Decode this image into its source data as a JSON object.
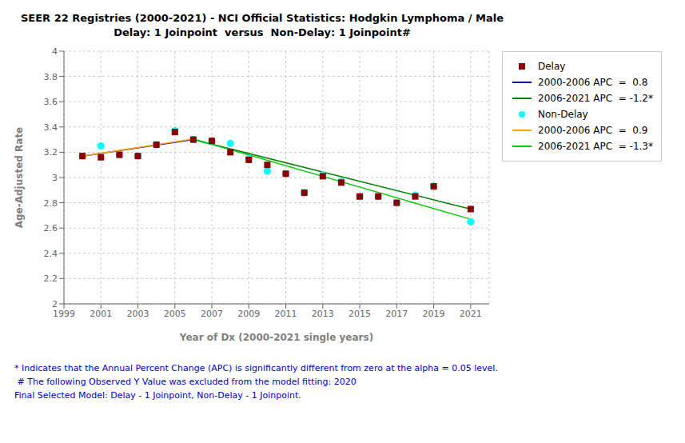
{
  "chart_data": {
    "type": "scatter",
    "title": "SEER 22 Registries (2000-2021) - NCI Official Statistics: Hodgkin Lymphoma / Male",
    "subtitle": "Delay: 1 Joinpoint  versus  Non-Delay: 1 Joinpoint#",
    "x_label": "Year of Dx (2000-2021 single years)",
    "y_label": "Age-Adjusted Rate",
    "xlim": [
      1999,
      2022
    ],
    "ylim": [
      2,
      4
    ],
    "xticks": [
      1999,
      2001,
      2003,
      2005,
      2007,
      2009,
      2011,
      2013,
      2015,
      2017,
      2019,
      2021
    ],
    "yticks": [
      2,
      2.2,
      2.4,
      2.6,
      2.8,
      3,
      3.2,
      3.4,
      3.6,
      3.8,
      4
    ],
    "grid": true,
    "legend": "right",
    "series": [
      {
        "name": "Delay",
        "type": "scatter",
        "marker": "square",
        "color": "#8B0000",
        "x": [
          2000,
          2001,
          2002,
          2003,
          2004,
          2005,
          2006,
          2007,
          2008,
          2009,
          2010,
          2011,
          2012,
          2013,
          2014,
          2015,
          2016,
          2017,
          2018,
          2019,
          2021
        ],
        "values": [
          3.17,
          3.16,
          3.18,
          3.17,
          3.26,
          3.36,
          3.3,
          3.29,
          3.2,
          3.14,
          3.1,
          3.03,
          2.88,
          3.01,
          2.96,
          2.85,
          2.85,
          2.8,
          2.85,
          2.93,
          2.75
        ]
      },
      {
        "name": "2000-2006 APC  =  0.8",
        "type": "line",
        "color": "#00008B",
        "x": [
          2000,
          2006
        ],
        "values": [
          3.17,
          3.3
        ]
      },
      {
        "name": "2006-2021 APC  = -1.2*",
        "type": "line",
        "color": "#008000",
        "x": [
          2006,
          2021
        ],
        "values": [
          3.3,
          2.75
        ]
      },
      {
        "name": "Non-Delay",
        "type": "scatter",
        "marker": "circle",
        "color": "#00FFFF",
        "x": [
          2000,
          2001,
          2002,
          2003,
          2004,
          2005,
          2006,
          2007,
          2008,
          2009,
          2010,
          2011,
          2012,
          2013,
          2014,
          2015,
          2016,
          2017,
          2018,
          2019,
          2021
        ],
        "values": [
          3.17,
          3.25,
          3.18,
          3.17,
          3.26,
          3.37,
          3.3,
          3.29,
          3.27,
          3.15,
          3.05,
          3.03,
          2.88,
          3.02,
          2.97,
          2.85,
          2.85,
          2.8,
          2.86,
          2.93,
          2.65
        ]
      },
      {
        "name": "2000-2006 APC  =  0.9",
        "type": "line",
        "color": "#FFA500",
        "x": [
          2000,
          2006
        ],
        "values": [
          3.17,
          3.305
        ]
      },
      {
        "name": "2006-2021 APC  = -1.3*",
        "type": "line",
        "color": "#00CC00",
        "x": [
          2006,
          2021
        ],
        "values": [
          3.305,
          2.67
        ]
      }
    ],
    "annotations": [
      {
        "text": "* Indicates that the Annual Percent Change (APC) is significantly different from zero at the alpha = 0.05 level.",
        "color": "#0000CD"
      },
      {
        "text": " # The following Observed Y Value was excluded from the model fitting: 2020",
        "color": "#0000CD"
      },
      {
        "text": "Final Selected Model: Delay - 1 Joinpoint, Non-Delay - 1 Joinpoint.",
        "color": "#0000CD"
      }
    ]
  }
}
